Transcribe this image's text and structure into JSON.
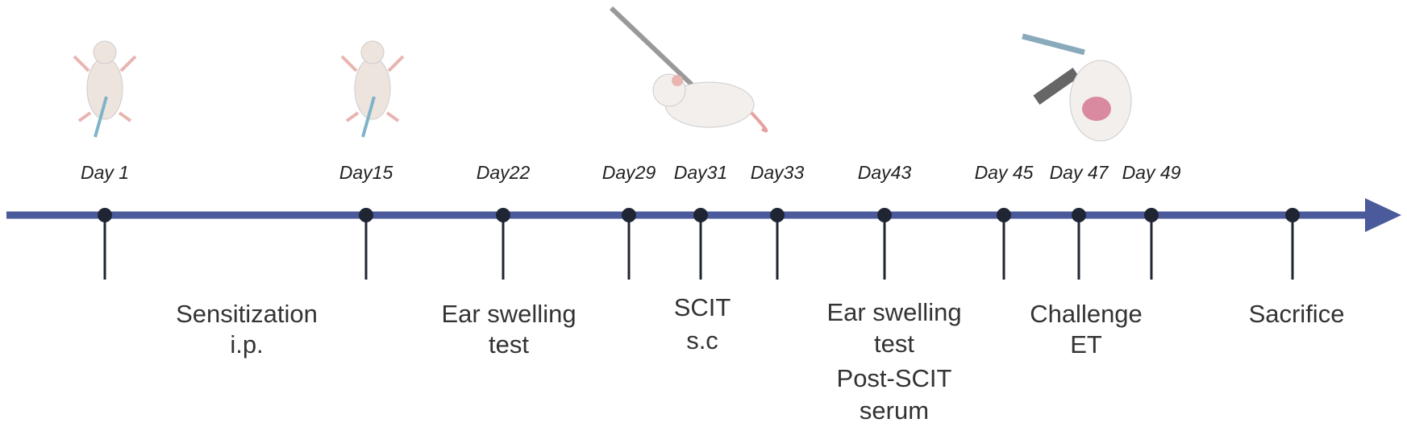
{
  "days": [
    "Day 1",
    "Day15",
    "Day22",
    "Day29",
    "Day31",
    "Day33",
    "Day43",
    "Day 45",
    "Day 47",
    "Day 49"
  ],
  "stages": [
    [
      "Sensitization",
      "i.p."
    ],
    [
      "Ear swelling",
      "test"
    ],
    [
      "SCIT",
      "s.c"
    ],
    [
      "Ear swelling",
      "test",
      "Post-SCIT",
      "serum"
    ],
    [
      "Challenge",
      "ET"
    ],
    [
      "Sacrifice"
    ]
  ]
}
